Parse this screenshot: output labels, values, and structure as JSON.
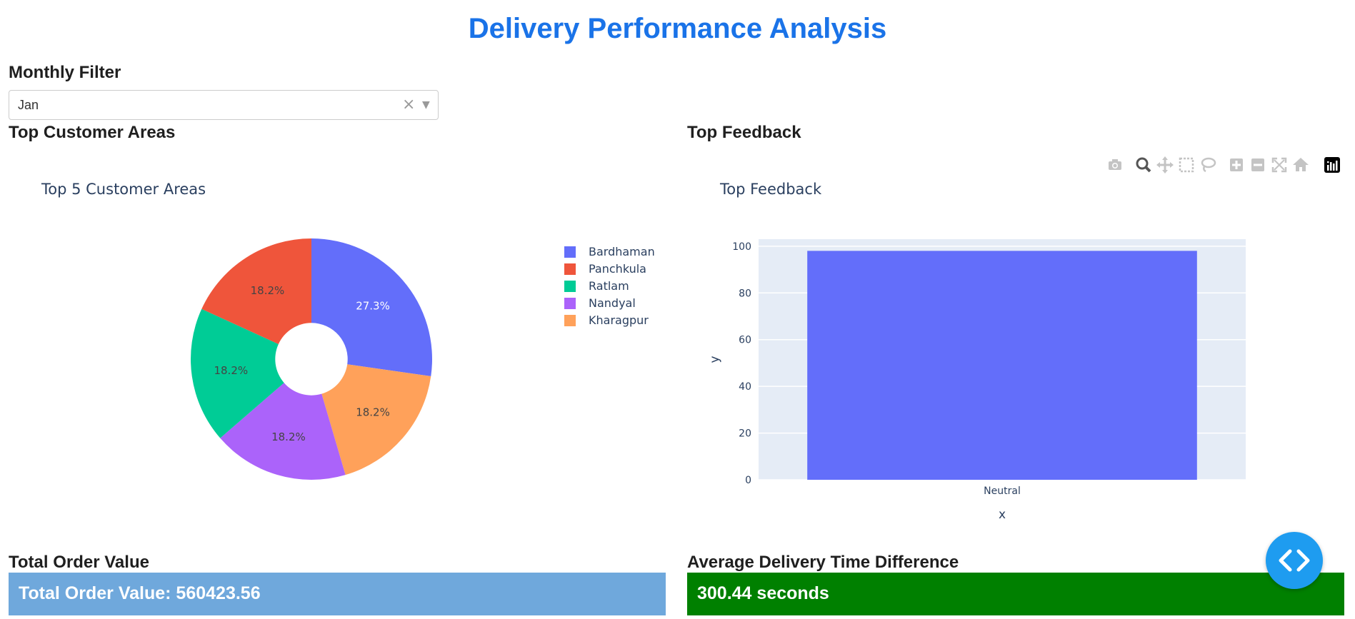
{
  "header": {
    "title": "Delivery Performance Analysis"
  },
  "filter": {
    "label": "Monthly Filter",
    "selected": "Jan",
    "clear_glyph": "×",
    "arrow_glyph": "▼"
  },
  "sections": {
    "customer_areas": "Top Customer Areas",
    "feedback": "Top Feedback",
    "total_order": "Total Order Value",
    "avg_delivery": "Average Delivery Time Difference"
  },
  "modebar": {
    "icons": [
      "camera-icon",
      "zoom-icon",
      "pan-icon",
      "box-select-icon",
      "lasso-select-icon",
      "zoom-in-icon",
      "zoom-out-icon",
      "autoscale-icon",
      "reset-axes-icon",
      "plotly-logo-icon"
    ]
  },
  "chart_data": [
    {
      "type": "pie",
      "title": "Top 5 Customer Areas",
      "hole": 0.3,
      "labels": [
        "Bardhaman",
        "Panchkula",
        "Ratlam",
        "Nandyal",
        "Kharagpur"
      ],
      "values": [
        27.3,
        18.2,
        18.2,
        18.2,
        18.2
      ],
      "text": [
        "27.3%",
        "18.2%",
        "18.2%",
        "18.2%",
        "18.2%"
      ],
      "colors": [
        "#636efa",
        "#ef553b",
        "#00cc96",
        "#ab63fa",
        "#ffa15a"
      ],
      "order": [
        "Bardhaman",
        "Kharagpur",
        "Nandyal",
        "Ratlam",
        "Panchkula"
      ],
      "legend": "right"
    },
    {
      "type": "bar",
      "title": "Top Feedback",
      "categories": [
        "Neutral"
      ],
      "values": [
        98
      ],
      "xlabel": "x",
      "ylabel": "y",
      "ylim": [
        0,
        103
      ],
      "yticks": [
        0,
        20,
        40,
        60,
        80,
        100
      ],
      "grid": true,
      "color": "#636efa",
      "plot_bg": "#e5ecf6"
    }
  ],
  "kpis": {
    "total_order_text": "Total Order Value: 560423.56",
    "total_order_color": "#6fa8dc",
    "avg_delivery_text": "300.44 seconds",
    "avg_delivery_color": "#008000"
  }
}
